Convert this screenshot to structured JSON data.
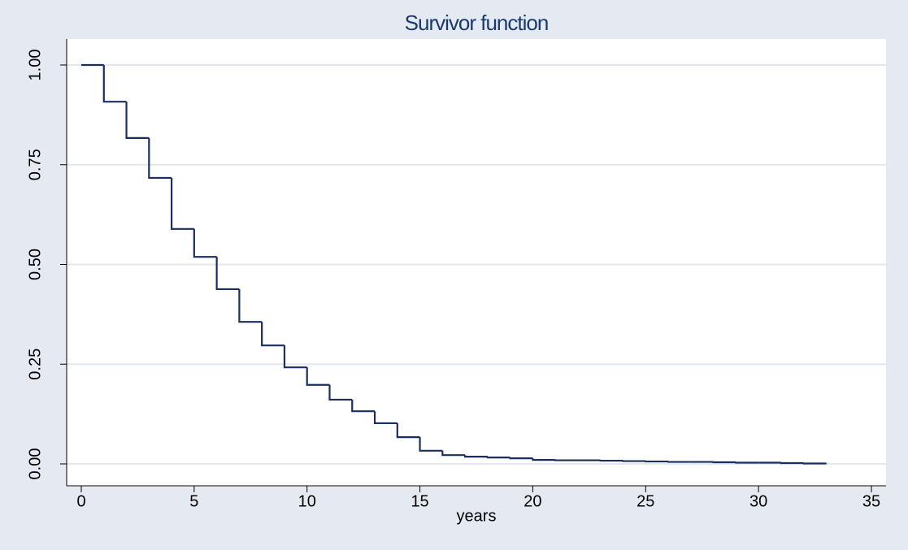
{
  "chart_data": {
    "type": "step",
    "title": "Survivor function",
    "x_label": "years",
    "x": [
      0,
      1,
      2,
      3,
      4,
      5,
      6,
      7,
      8,
      9,
      10,
      11,
      12,
      13,
      14,
      15,
      16,
      17,
      18,
      19,
      20,
      21,
      22,
      23,
      24,
      25,
      26,
      27,
      28,
      29,
      30,
      31,
      32,
      33
    ],
    "values": [
      1.0,
      0.908,
      0.817,
      0.717,
      0.589,
      0.519,
      0.438,
      0.356,
      0.297,
      0.242,
      0.198,
      0.161,
      0.132,
      0.102,
      0.067,
      0.033,
      0.022,
      0.018,
      0.016,
      0.014,
      0.01,
      0.009,
      0.009,
      0.008,
      0.007,
      0.006,
      0.005,
      0.005,
      0.004,
      0.003,
      0.003,
      0.002,
      0.001,
      0.0
    ],
    "color": "#1b2f5e",
    "xlim": [
      0,
      35
    ],
    "xticks": [
      0,
      5,
      10,
      15,
      20,
      25,
      30,
      35
    ],
    "ylim": [
      0,
      1
    ],
    "yticks": [
      {
        "value": 0,
        "label": "0.00"
      },
      {
        "value": 0.25,
        "label": "0.25"
      },
      {
        "value": 0.5,
        "label": "0.50"
      },
      {
        "value": 0.75,
        "label": "0.75"
      },
      {
        "value": 1,
        "label": "1.00"
      }
    ],
    "grid": true
  }
}
